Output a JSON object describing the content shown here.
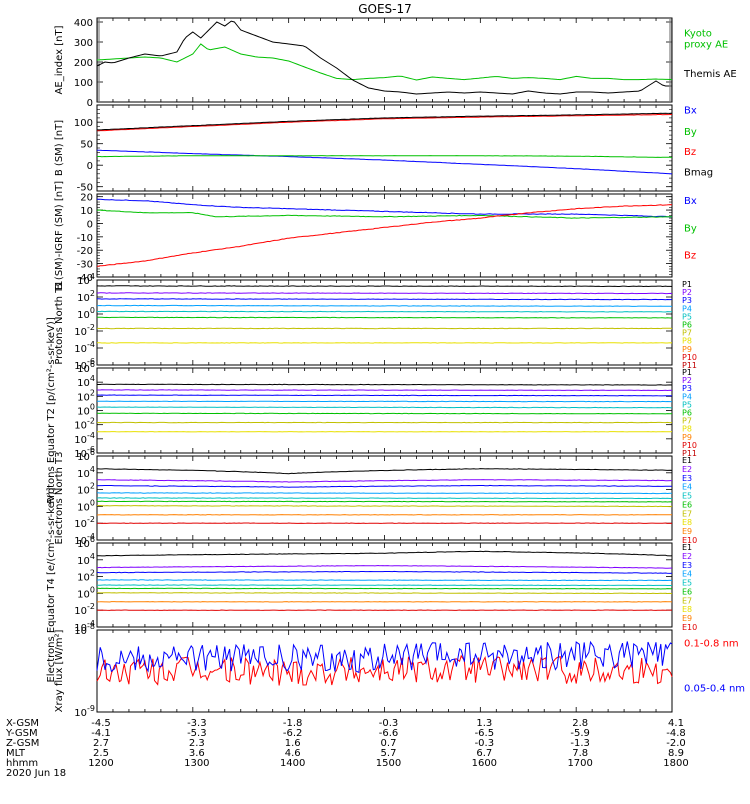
{
  "title": "GOES-17",
  "colors": {
    "black": "#000000",
    "red": "#ff0000",
    "green": "#00c000",
    "blue": "#0000ff",
    "frame": "#000000"
  },
  "time_axis": {
    "start": "1200",
    "end": "1800",
    "label_rows": [
      {
        "name": "X-GSM",
        "values": [
          "-4.5",
          "-3.3",
          "-1.8",
          "-0.3",
          "1.3",
          "2.8",
          "4.1"
        ]
      },
      {
        "name": "Y-GSM",
        "values": [
          "-4.1",
          "-5.3",
          "-6.2",
          "-6.6",
          "-6.5",
          "-5.9",
          "-4.8"
        ]
      },
      {
        "name": "Z-GSM",
        "values": [
          "2.7",
          "2.3",
          "1.6",
          "0.7",
          "-0.3",
          "-1.3",
          "-2.0"
        ]
      },
      {
        "name": "MLT",
        "values": [
          "2.5",
          "3.6",
          "4.6",
          "5.7",
          "6.7",
          "7.8",
          "8.9"
        ]
      },
      {
        "name": "hhmm",
        "values": [
          "1200",
          "1300",
          "1400",
          "1500",
          "1600",
          "1700",
          "1800"
        ]
      }
    ],
    "date": "2020 Jun 18"
  },
  "chart_data": [
    {
      "type": "line",
      "id": "ae",
      "ylabel": "AE_index [nT]",
      "ylim": [
        0,
        420
      ],
      "yticks": [
        "0",
        "100",
        "200",
        "300",
        "400"
      ],
      "series": [
        {
          "name": "Kyoto proxy AE",
          "color": "#00c000",
          "x": [
            1200,
            1210,
            1220,
            1230,
            1240,
            1250,
            1300,
            1305,
            1310,
            1320,
            1330,
            1340,
            1350,
            1400,
            1410,
            1420,
            1430,
            1440,
            1450,
            1500,
            1510,
            1520,
            1530,
            1540,
            1550,
            1600,
            1610,
            1620,
            1630,
            1640,
            1650,
            1700,
            1710,
            1720,
            1730,
            1740,
            1750,
            1800
          ],
          "y": [
            210,
            215,
            220,
            225,
            220,
            200,
            240,
            290,
            260,
            275,
            240,
            225,
            220,
            205,
            175,
            145,
            118,
            112,
            118,
            122,
            130,
            110,
            125,
            118,
            112,
            120,
            128,
            118,
            122,
            118,
            112,
            128,
            118,
            118,
            112,
            112,
            115,
            112
          ]
        },
        {
          "name": "Themis AE",
          "color": "#000000",
          "x": [
            1200,
            1205,
            1210,
            1220,
            1230,
            1240,
            1250,
            1255,
            1300,
            1305,
            1310,
            1315,
            1320,
            1325,
            1330,
            1340,
            1350,
            1400,
            1410,
            1420,
            1430,
            1440,
            1450,
            1500,
            1510,
            1520,
            1530,
            1540,
            1550,
            1600,
            1610,
            1620,
            1630,
            1640,
            1650,
            1700,
            1710,
            1720,
            1730,
            1740,
            1750,
            1755,
            1800
          ],
          "y": [
            180,
            200,
            195,
            220,
            240,
            230,
            250,
            320,
            350,
            320,
            360,
            400,
            380,
            410,
            360,
            330,
            300,
            290,
            280,
            220,
            170,
            110,
            70,
            55,
            50,
            40,
            45,
            50,
            45,
            50,
            45,
            40,
            55,
            45,
            40,
            50,
            50,
            45,
            50,
            55,
            105,
            80,
            80
          ]
        }
      ]
    },
    {
      "type": "line",
      "id": "bsm",
      "ylabel": "B (SM) [nT]",
      "ylim": [
        -60,
        140
      ],
      "yticks": [
        "-50",
        "0",
        "50",
        "100"
      ],
      "series": [
        {
          "name": "Bx",
          "color": "#0000ff",
          "x": [
            1200,
            1300,
            1400,
            1500,
            1600,
            1700,
            1800
          ],
          "y": [
            35,
            27,
            20,
            12,
            2,
            -8,
            -20
          ]
        },
        {
          "name": "By",
          "color": "#00c000",
          "x": [
            1200,
            1300,
            1400,
            1500,
            1600,
            1700,
            1800
          ],
          "y": [
            20,
            22,
            22,
            22,
            22,
            21,
            18
          ]
        },
        {
          "name": "Bz",
          "color": "#ff0000",
          "x": [
            1200,
            1300,
            1400,
            1500,
            1600,
            1700,
            1800
          ],
          "y": [
            80,
            90,
            100,
            108,
            112,
            115,
            118
          ]
        },
        {
          "name": "Bmag",
          "color": "#000000",
          "x": [
            1200,
            1300,
            1400,
            1500,
            1600,
            1700,
            1800
          ],
          "y": [
            82,
            92,
            102,
            110,
            114,
            117,
            121
          ]
        }
      ]
    },
    {
      "type": "line",
      "id": "bigrf",
      "ylabel": "B (SM)-IGRF (SM) [nT]",
      "ylim": [
        -40,
        22
      ],
      "yticks": [
        "-40",
        "-30",
        "-20",
        "-10",
        "0",
        "10",
        "20"
      ],
      "series": [
        {
          "name": "Bx",
          "color": "#0000ff",
          "x": [
            1200,
            1230,
            1300,
            1330,
            1400,
            1500,
            1600,
            1700,
            1800
          ],
          "y": [
            18,
            17,
            14,
            12,
            11,
            9,
            7,
            7,
            5
          ]
        },
        {
          "name": "By",
          "color": "#00c000",
          "x": [
            1200,
            1230,
            1300,
            1315,
            1400,
            1500,
            1600,
            1700,
            1800
          ],
          "y": [
            10,
            8,
            8,
            5,
            6,
            5,
            6,
            4,
            5
          ]
        },
        {
          "name": "Bz",
          "color": "#ff0000",
          "x": [
            1200,
            1230,
            1300,
            1330,
            1400,
            1430,
            1500,
            1530,
            1600,
            1630,
            1700,
            1730,
            1800
          ],
          "y": [
            -32,
            -28,
            -22,
            -17,
            -11,
            -7,
            -3,
            1,
            4,
            8,
            11,
            13,
            14
          ]
        }
      ]
    },
    {
      "type": "line",
      "id": "prot_t1",
      "ylabel": "Protons North T1",
      "log": true,
      "ylim": [
        1e-06,
        10000.0
      ],
      "yticks": [
        "10^4",
        "10^2",
        "10^0",
        "10^-2",
        "10^-4",
        "10^-6"
      ],
      "legend": [
        "P1",
        "P2",
        "P3",
        "P4",
        "P5",
        "P6",
        "P7",
        "P8",
        "P9",
        "P10",
        "P11"
      ],
      "series": [
        {
          "name": "P1",
          "color": "#000000",
          "x": [
            1200,
            1800
          ],
          "y": [
            2000,
            1800
          ]
        },
        {
          "name": "P2",
          "color": "#7f00ff",
          "x": [
            1200,
            1800
          ],
          "y": [
            300,
            260
          ]
        },
        {
          "name": "P3",
          "color": "#0000ff",
          "x": [
            1200,
            1800
          ],
          "y": [
            60,
            50
          ]
        },
        {
          "name": "P4",
          "color": "#00a0ff",
          "x": [
            1200,
            1800
          ],
          "y": [
            10,
            8
          ]
        },
        {
          "name": "P5",
          "color": "#00c0c0",
          "x": [
            1200,
            1800
          ],
          "y": [
            2,
            1.8
          ]
        },
        {
          "name": "P6",
          "color": "#00c000",
          "x": [
            1200,
            1800
          ],
          "y": [
            0.4,
            0.35
          ]
        },
        {
          "name": "P7",
          "color": "#c0c000",
          "x": [
            1200,
            1800
          ],
          "y": [
            0.02,
            0.02
          ]
        },
        {
          "name": "P8",
          "color": "#e8e000",
          "x": [
            1200,
            1800
          ],
          "y": [
            0.0004,
            0.0004
          ]
        }
      ]
    },
    {
      "type": "line",
      "id": "prot_t2",
      "ylabel": "Protons Equator T2 [p/(cm²-s-sr-keV)]",
      "log": true,
      "ylim": [
        1e-06,
        1000000.0
      ],
      "yticks": [
        "10^6",
        "10^4",
        "10^2",
        "10^0",
        "10^-2",
        "10^-4",
        "10^-6"
      ],
      "legend": [
        "P1",
        "P2",
        "P3",
        "P4",
        "P5",
        "P6",
        "P7",
        "P8",
        "P9",
        "P10",
        "P11"
      ],
      "series": [
        {
          "name": "P1",
          "color": "#000000",
          "x": [
            1200,
            1800
          ],
          "y": [
            5000,
            4000
          ]
        },
        {
          "name": "P2",
          "color": "#7f00ff",
          "x": [
            1200,
            1800
          ],
          "y": [
            800,
            700
          ]
        },
        {
          "name": "P3",
          "color": "#0000ff",
          "x": [
            1200,
            1800
          ],
          "y": [
            150,
            120
          ]
        },
        {
          "name": "P4",
          "color": "#00a0ff",
          "x": [
            1200,
            1800
          ],
          "y": [
            20,
            18
          ]
        },
        {
          "name": "P5",
          "color": "#00c0c0",
          "x": [
            1200,
            1800
          ],
          "y": [
            3,
            2.5
          ]
        },
        {
          "name": "P6",
          "color": "#00c000",
          "x": [
            1200,
            1800
          ],
          "y": [
            0.4,
            0.35
          ]
        },
        {
          "name": "P7",
          "color": "#c0c000",
          "x": [
            1200,
            1800
          ],
          "y": [
            0.02,
            0.02
          ]
        },
        {
          "name": "P8",
          "color": "#e8e000",
          "x": [
            1200,
            1800
          ],
          "y": [
            0.001,
            0.001
          ]
        }
      ]
    },
    {
      "type": "line",
      "id": "elec_t3",
      "ylabel": "Electrons North T3",
      "log": true,
      "ylim": [
        0.0001,
        1000000.0
      ],
      "yticks": [
        "10^6",
        "10^4",
        "10^2",
        "10^0",
        "10^-2",
        "10^-4"
      ],
      "legend": [
        "E1",
        "E2",
        "E3",
        "E4",
        "E5",
        "E6",
        "E7",
        "E8",
        "E9",
        "E10"
      ],
      "series": [
        {
          "name": "E1",
          "color": "#000000",
          "x": [
            1200,
            1400,
            1600,
            1800
          ],
          "y": [
            30000,
            8000,
            30000,
            20000
          ]
        },
        {
          "name": "E2",
          "color": "#7f00ff",
          "x": [
            1200,
            1400,
            1600,
            1800
          ],
          "y": [
            1500,
            800,
            1500,
            1200
          ]
        },
        {
          "name": "E3",
          "color": "#0000ff",
          "x": [
            1200,
            1400,
            1600,
            1800
          ],
          "y": [
            300,
            200,
            300,
            250
          ]
        },
        {
          "name": "E4",
          "color": "#00a0ff",
          "x": [
            1200,
            1800
          ],
          "y": [
            40,
            35
          ]
        },
        {
          "name": "E5",
          "color": "#00c0c0",
          "x": [
            1200,
            1800
          ],
          "y": [
            10,
            9
          ]
        },
        {
          "name": "E6",
          "color": "#00c000",
          "x": [
            1200,
            1800
          ],
          "y": [
            4,
            3.5
          ]
        },
        {
          "name": "E7",
          "color": "#c0c000",
          "x": [
            1200,
            1800
          ],
          "y": [
            1.2,
            1
          ]
        },
        {
          "name": "E8",
          "color": "#ff8000",
          "x": [
            1200,
            1800
          ],
          "y": [
            0.1,
            0.1
          ]
        },
        {
          "name": "E9",
          "color": "#e00000",
          "x": [
            1200,
            1800
          ],
          "y": [
            0.01,
            0.01
          ]
        }
      ]
    },
    {
      "type": "line",
      "id": "elec_t4",
      "ylabel": "Electrons Equator T4 [e/(cm²-s-sr-keV)]",
      "log": true,
      "ylim": [
        0.0001,
        1000000.0
      ],
      "yticks": [
        "10^6",
        "10^4",
        "10^2",
        "10^0",
        "10^-2",
        "10^-4"
      ],
      "legend": [
        "E1",
        "E2",
        "E3",
        "E4",
        "E5",
        "E6",
        "E7",
        "E8",
        "E9",
        "E10"
      ],
      "series": [
        {
          "name": "E1",
          "color": "#000000",
          "x": [
            1200,
            1500,
            1600,
            1800
          ],
          "y": [
            30000,
            60000,
            100000,
            30000
          ]
        },
        {
          "name": "E2",
          "color": "#7f00ff",
          "x": [
            1200,
            1500,
            1800
          ],
          "y": [
            1200,
            2000,
            1000
          ]
        },
        {
          "name": "E3",
          "color": "#0000ff",
          "x": [
            1200,
            1500,
            1800
          ],
          "y": [
            300,
            400,
            250
          ]
        },
        {
          "name": "E4",
          "color": "#00a0ff",
          "x": [
            1200,
            1800
          ],
          "y": [
            40,
            35
          ]
        },
        {
          "name": "E5",
          "color": "#00c0c0",
          "x": [
            1200,
            1800
          ],
          "y": [
            10,
            9
          ]
        },
        {
          "name": "E6",
          "color": "#00c000",
          "x": [
            1200,
            1800
          ],
          "y": [
            4,
            3.5
          ]
        },
        {
          "name": "E7",
          "color": "#c0c000",
          "x": [
            1200,
            1800
          ],
          "y": [
            1.2,
            1
          ]
        },
        {
          "name": "E8",
          "color": "#ff8000",
          "x": [
            1200,
            1800
          ],
          "y": [
            0.1,
            0.1
          ]
        },
        {
          "name": "E9",
          "color": "#e00000",
          "x": [
            1200,
            1800
          ],
          "y": [
            0.01,
            0.01
          ]
        }
      ]
    },
    {
      "type": "line",
      "id": "xray",
      "ylabel": "Xray flux [W/m²]",
      "log": true,
      "ylim": [
        1e-09,
        1e-08
      ],
      "yticks": [
        "10^-8",
        "10^-9"
      ],
      "series": [
        {
          "name": "0.1-0.8 nm",
          "color": "#ff0000",
          "x": [
            1200,
            1300,
            1400,
            1500,
            1600,
            1700,
            1800
          ],
          "y": [
            3e-09,
            3.2e-09,
            3.1e-09,
            3.3e-09,
            3.4e-09,
            3.2e-09,
            3.3e-09
          ]
        },
        {
          "name": "0.05-0.4 nm",
          "color": "#0000ff",
          "x": [
            1200,
            1300,
            1400,
            1500,
            1600,
            1700,
            1800
          ],
          "y": [
            4.6e-09,
            4.7e-09,
            4.4e-09,
            4.6e-09,
            4.9e-09,
            4.9e-09,
            5e-09
          ]
        }
      ]
    }
  ]
}
